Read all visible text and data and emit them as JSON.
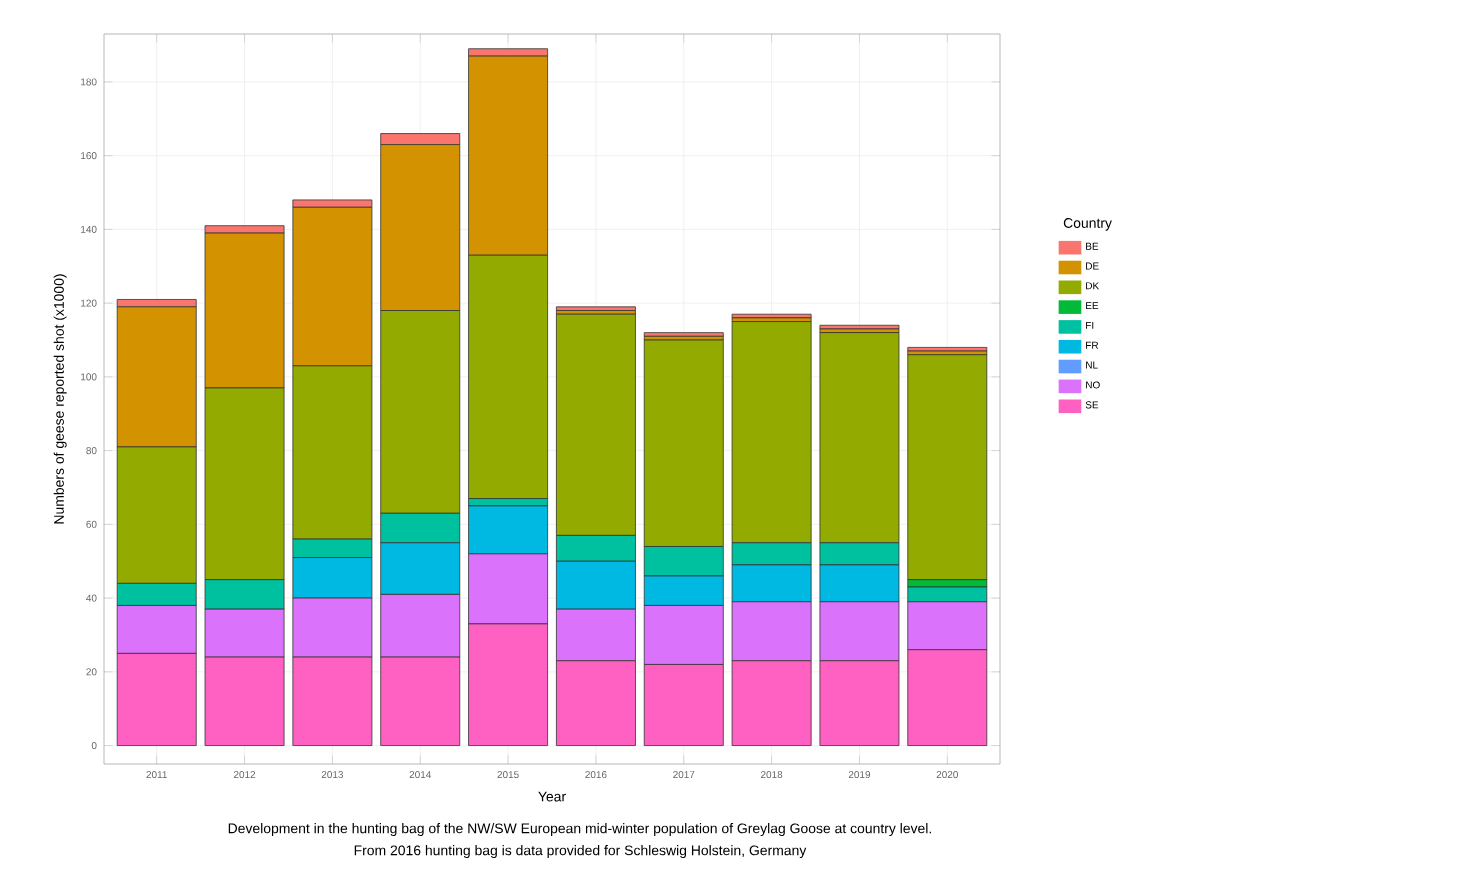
{
  "chart_data": {
    "type": "bar",
    "stacked": true,
    "xlabel": "Year",
    "ylabel": "Numbers of geese reported shot (x1000)",
    "legend_title": "Country",
    "categories": [
      "2011",
      "2012",
      "2013",
      "2014",
      "2015",
      "2016",
      "2017",
      "2018",
      "2019",
      "2020"
    ],
    "series": [
      {
        "name": "SE",
        "color": "#ff61c3",
        "values": [
          25,
          24,
          24,
          24,
          33,
          23,
          22,
          23,
          23,
          26
        ]
      },
      {
        "name": "NO",
        "color": "#db72fb",
        "values": [
          13,
          13,
          16,
          17,
          19,
          14,
          16,
          16,
          16,
          13
        ]
      },
      {
        "name": "NL",
        "color": "#619cff",
        "values": [
          0,
          0,
          0,
          0,
          0,
          0,
          0,
          0,
          0,
          0
        ]
      },
      {
        "name": "FR",
        "color": "#00b9e3",
        "values": [
          0,
          0,
          11,
          14,
          13,
          13,
          8,
          10,
          10,
          0
        ]
      },
      {
        "name": "FI",
        "color": "#00c19f",
        "values": [
          6,
          8,
          5,
          8,
          2,
          7,
          8,
          6,
          6,
          4
        ]
      },
      {
        "name": "EE",
        "color": "#00ba38",
        "values": [
          0,
          0,
          0,
          0,
          0,
          0,
          0,
          0,
          0,
          2
        ]
      },
      {
        "name": "DK",
        "color": "#93aa00",
        "values": [
          37,
          52,
          47,
          55,
          66,
          60,
          56,
          60,
          57,
          61
        ]
      },
      {
        "name": "DE",
        "color": "#d39200",
        "values": [
          38,
          42,
          43,
          45,
          54,
          1,
          1,
          1,
          1,
          1
        ]
      },
      {
        "name": "BE",
        "color": "#f8766d",
        "values": [
          2,
          2,
          2,
          3,
          2,
          1,
          1,
          1,
          1,
          1
        ]
      }
    ],
    "ylim": [
      -5,
      193
    ],
    "yticks": [
      0,
      20,
      40,
      60,
      80,
      100,
      120,
      140,
      160,
      180
    ],
    "grid": true,
    "legend": "right",
    "annotations": [
      "Development in the hunting bag of the NW/SW European mid-winter population of Greylag Goose at country level.",
      "From 2016 hunting bag is data provided for Schleswig Holstein, Germany"
    ]
  }
}
